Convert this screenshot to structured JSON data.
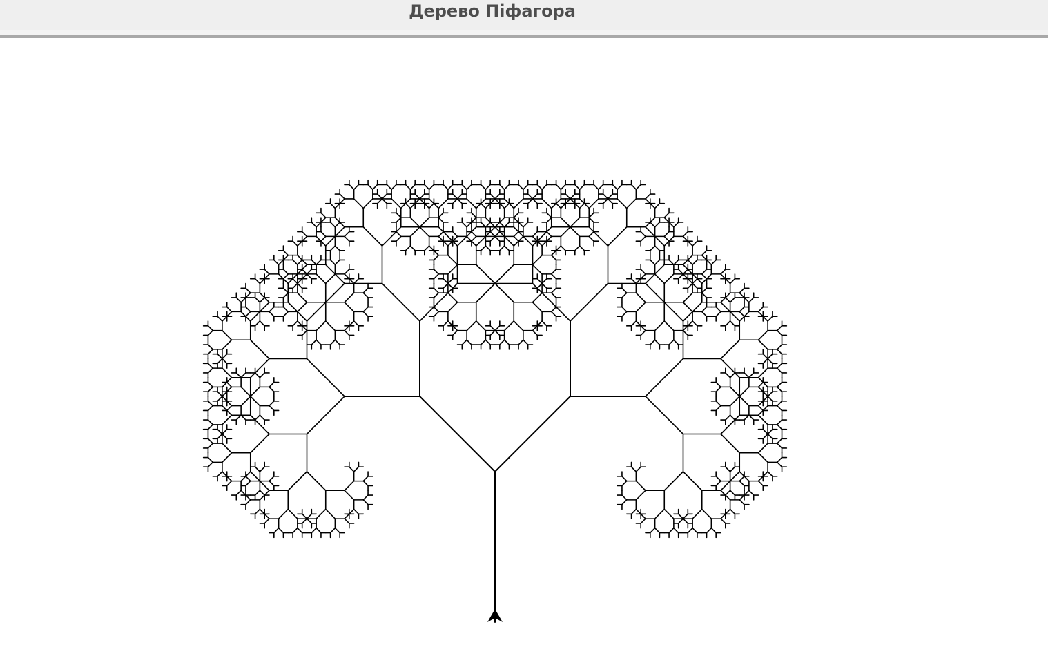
{
  "window": {
    "title": "Дерево Піфагора"
  },
  "canvas": {
    "background": "#ffffff",
    "stroke_color": "#000000"
  },
  "turtle": {
    "icon": "turtle-arrow-icon",
    "heading": "up",
    "color": "#000000"
  },
  "fractal": {
    "name": "pythagoras-tree",
    "branch_angle_deg": 45,
    "length_ratio": 0.7071,
    "depth": 10
  }
}
